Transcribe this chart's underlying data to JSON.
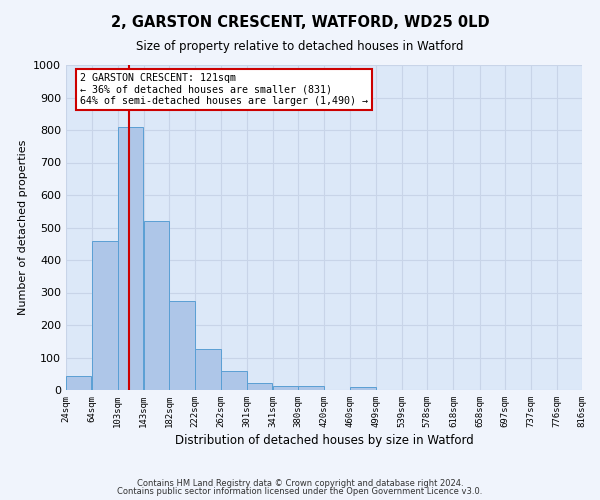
{
  "title1": "2, GARSTON CRESCENT, WATFORD, WD25 0LD",
  "title2": "Size of property relative to detached houses in Watford",
  "xlabel": "Distribution of detached houses by size in Watford",
  "ylabel": "Number of detached properties",
  "bins": [
    "24sqm",
    "64sqm",
    "103sqm",
    "143sqm",
    "182sqm",
    "222sqm",
    "262sqm",
    "301sqm",
    "341sqm",
    "380sqm",
    "420sqm",
    "460sqm",
    "499sqm",
    "539sqm",
    "578sqm",
    "618sqm",
    "658sqm",
    "697sqm",
    "737sqm",
    "776sqm",
    "816sqm"
  ],
  "bin_left_edges": [
    24,
    64,
    103,
    143,
    182,
    222,
    262,
    301,
    341,
    380,
    420,
    460,
    499,
    539,
    578,
    618,
    658,
    697,
    737,
    776
  ],
  "bin_width": 39,
  "values": [
    43,
    460,
    810,
    520,
    275,
    125,
    57,
    22,
    12,
    12,
    0,
    10,
    0,
    0,
    0,
    0,
    0,
    0,
    0,
    0
  ],
  "bar_color": "#aec6e8",
  "bar_edge_color": "#5a9fd4",
  "property_size": 121,
  "vline_color": "#cc0000",
  "annotation_text": "2 GARSTON CRESCENT: 121sqm\n← 36% of detached houses are smaller (831)\n64% of semi-detached houses are larger (1,490) →",
  "annotation_box_color": "#ffffff",
  "annotation_box_edge_color": "#cc0000",
  "ylim": [
    0,
    1000
  ],
  "yticks": [
    0,
    100,
    200,
    300,
    400,
    500,
    600,
    700,
    800,
    900,
    1000
  ],
  "grid_color": "#c8d4e8",
  "bg_color": "#dce8f8",
  "fig_bg_color": "#f0f4fc",
  "footnote1": "Contains HM Land Registry data © Crown copyright and database right 2024.",
  "footnote2": "Contains public sector information licensed under the Open Government Licence v3.0."
}
